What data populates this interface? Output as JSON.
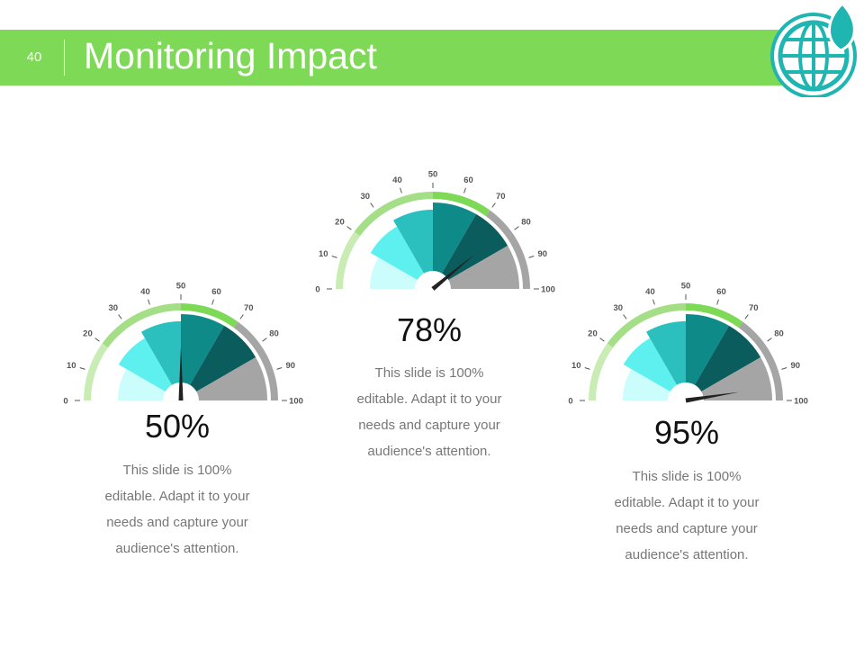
{
  "slide": {
    "number": "40",
    "title": "Monitoring Impact"
  },
  "colors": {
    "header": "#7ed957",
    "logo": "#1fb5b0",
    "gauge_segments": [
      "#ccfdfd",
      "#5df0ef",
      "#2bc0bd",
      "#0e8a89",
      "#0b5c5d",
      "#a5a5a5"
    ],
    "outer_arc": [
      "#c8ecb4",
      "#a4de86",
      "#7ed957",
      "#a5a5a5"
    ],
    "needle": "#222222"
  },
  "chart_data": [
    {
      "type": "gauge",
      "value": 50,
      "label": "50%",
      "range": [
        0,
        100
      ],
      "ticks": [
        "0",
        "10",
        "20",
        "30",
        "40",
        "50",
        "60",
        "70",
        "80",
        "90",
        "100"
      ],
      "caption_lines": [
        "This slide is 100%",
        "editable. Adapt it to your",
        "needs and capture your",
        "audience's attention."
      ]
    },
    {
      "type": "gauge",
      "value": 78,
      "label": "78%",
      "range": [
        0,
        100
      ],
      "ticks": [
        "0",
        "10",
        "20",
        "30",
        "40",
        "50",
        "60",
        "70",
        "80",
        "90",
        "100"
      ],
      "caption_lines": [
        "This slide is 100%",
        "editable. Adapt it to your",
        "needs and capture your",
        "audience's attention."
      ]
    },
    {
      "type": "gauge",
      "value": 95,
      "label": "95%",
      "range": [
        0,
        100
      ],
      "ticks": [
        "0",
        "10",
        "20",
        "30",
        "40",
        "50",
        "60",
        "70",
        "80",
        "90",
        "100"
      ],
      "caption_lines": [
        "This slide is 100%",
        "editable. Adapt it to your",
        "needs and capture your",
        "audience's attention."
      ]
    }
  ]
}
